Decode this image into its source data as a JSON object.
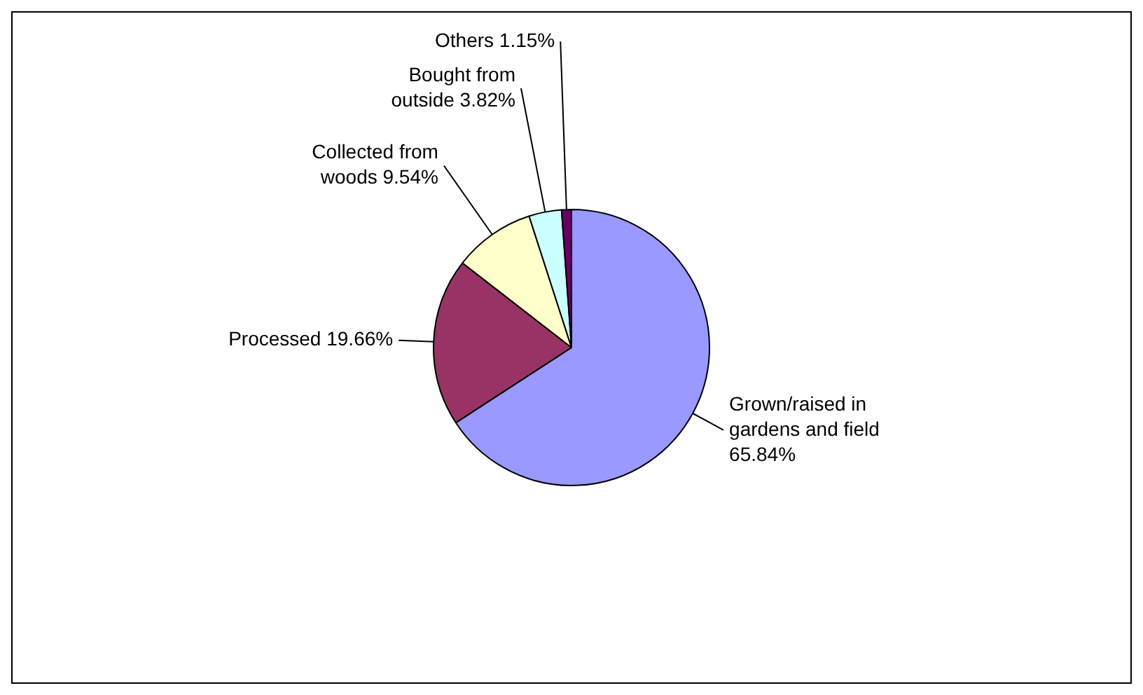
{
  "chart_data": {
    "type": "pie",
    "categories": [
      "Grown/raised in gardens and field",
      "Processed",
      "Collected from woods",
      "Bought from outside",
      "Others"
    ],
    "values": [
      65.84,
      19.66,
      9.54,
      3.82,
      1.15
    ],
    "colors": [
      "#9999ff",
      "#993366",
      "#ffffcc",
      "#ccffff",
      "#660066"
    ],
    "value_labels": [
      "65.84%",
      "19.66%",
      "9.54%",
      "3.82%",
      "1.15%"
    ],
    "legend": false
  }
}
